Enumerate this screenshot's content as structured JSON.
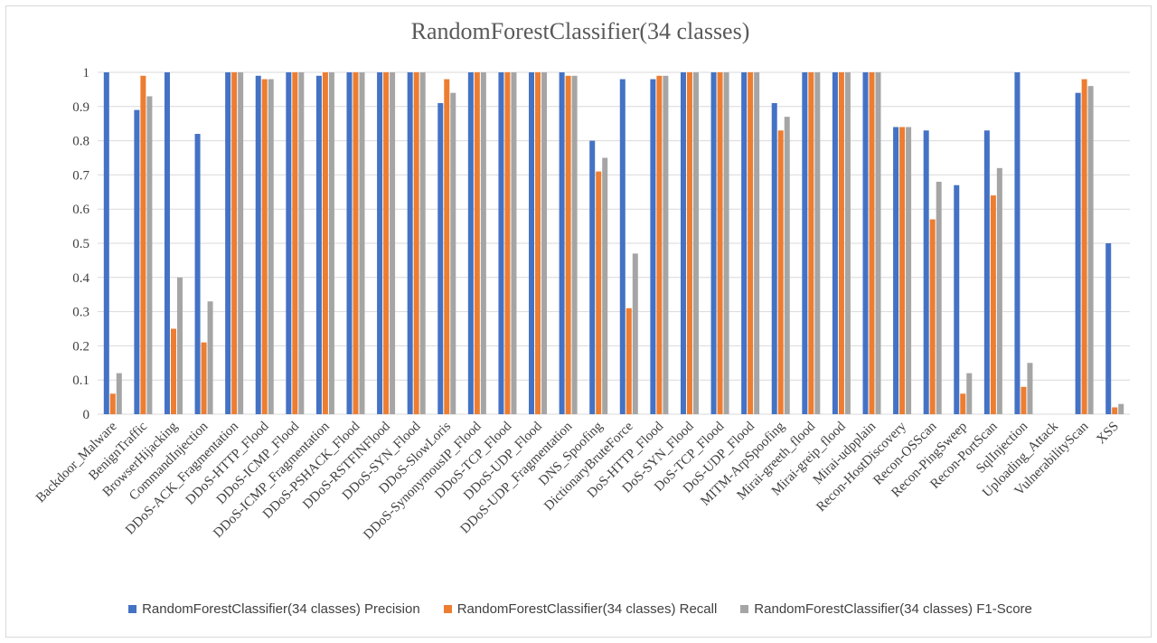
{
  "chart_data": {
    "type": "bar",
    "title": "RandomForestClassifier(34 classes)",
    "xlabel": "",
    "ylabel": "",
    "ylim": [
      0,
      1
    ],
    "yticks": [
      "0",
      "0.1",
      "0.2",
      "0.3",
      "0.4",
      "0.5",
      "0.6",
      "0.7",
      "0.8",
      "0.9",
      "1"
    ],
    "grid": true,
    "legend_position": "bottom",
    "categories": [
      "Backdoor_Malware",
      "BenignTraffic",
      "BrowserHijacking",
      "CommandInjection",
      "DDoS-ACK_Fragmentation",
      "DDoS-HTTP_Flood",
      "DDoS-ICMP_Flood",
      "DDoS-ICMP_Fragmentation",
      "DDoS-PSHACK_Flood",
      "DDoS-RSTFINFlood",
      "DDoS-SYN_Flood",
      "DDoS-SlowLoris",
      "DDoS-SynonymousIP_Flood",
      "DDoS-TCP_Flood",
      "DDoS-UDP_Flood",
      "DDoS-UDP_Fragmentation",
      "DNS_Spoofing",
      "DictionaryBruteForce",
      "DoS-HTTP_Flood",
      "DoS-SYN_Flood",
      "DoS-TCP_Flood",
      "DoS-UDP_Flood",
      "MITM-ArpSpoofing",
      "Mirai-greeth_flood",
      "Mirai-greip_flood",
      "Mirai-udpplain",
      "Recon-HostDiscovery",
      "Recon-OSScan",
      "Recon-PingSweep",
      "Recon-PortScan",
      "SqlInjection",
      "Uploading_Attack",
      "VulnerabilityScan",
      "XSS"
    ],
    "series": [
      {
        "name": "RandomForestClassifier(34 classes) Precision",
        "color": "#4472c4",
        "values": [
          1.0,
          0.89,
          1.0,
          0.82,
          1.0,
          0.99,
          1.0,
          0.99,
          1.0,
          1.0,
          1.0,
          0.91,
          1.0,
          1.0,
          1.0,
          1.0,
          0.8,
          0.98,
          0.98,
          1.0,
          1.0,
          1.0,
          0.91,
          1.0,
          1.0,
          1.0,
          0.84,
          0.83,
          0.67,
          0.83,
          1.0,
          0.0,
          0.94,
          0.5
        ]
      },
      {
        "name": "RandomForestClassifier(34 classes) Recall",
        "color": "#ed7d31",
        "values": [
          0.06,
          0.99,
          0.25,
          0.21,
          1.0,
          0.98,
          1.0,
          1.0,
          1.0,
          1.0,
          1.0,
          0.98,
          1.0,
          1.0,
          1.0,
          0.99,
          0.71,
          0.31,
          0.99,
          1.0,
          1.0,
          1.0,
          0.83,
          1.0,
          1.0,
          1.0,
          0.84,
          0.57,
          0.06,
          0.64,
          0.08,
          0.0,
          0.98,
          0.02
        ]
      },
      {
        "name": "RandomForestClassifier(34 classes) F1-Score",
        "color": "#a5a5a5",
        "values": [
          0.12,
          0.93,
          0.4,
          0.33,
          1.0,
          0.98,
          1.0,
          1.0,
          1.0,
          1.0,
          1.0,
          0.94,
          1.0,
          1.0,
          1.0,
          0.99,
          0.75,
          0.47,
          0.99,
          1.0,
          1.0,
          1.0,
          0.87,
          1.0,
          1.0,
          1.0,
          0.84,
          0.68,
          0.12,
          0.72,
          0.15,
          0.0,
          0.96,
          0.03
        ]
      }
    ]
  }
}
